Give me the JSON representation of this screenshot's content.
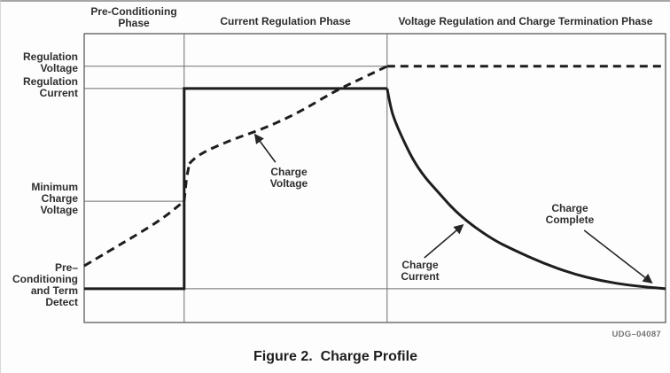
{
  "figure": {
    "caption": "Figure 2.  Charge Profile",
    "drawing_number": "UDG–04087"
  },
  "labels": {
    "phase1": "Pre-Conditioning\nPhase",
    "phase2": "Current Regulation Phase",
    "phase3": "Voltage Regulation and Charge Termination Phase",
    "regulation_voltage": "Regulation\nVoltage",
    "regulation_current": "Regulation\nCurrent",
    "minimum_charge_voltage": "Minimum\nCharge\nVoltage",
    "precondition_term_detect": "Pre–\nConditioning\nand Term\nDetect",
    "charge_voltage": "Charge\nVoltage",
    "charge_current": "Charge\nCurrent",
    "charge_complete": "Charge\nComplete"
  },
  "chart_data": {
    "type": "line",
    "title": "Figure 2.  Charge Profile",
    "xlabel": "",
    "ylabel": "",
    "units": "normalized 0–1 fractions (chart shows no numeric scales)",
    "grid": "reference levels and phase boundaries only",
    "phases": [
      {
        "label": "Pre-Conditioning Phase",
        "x_start": 0,
        "x_end": 0.172
      },
      {
        "label": "Current Regulation Phase",
        "x_start": 0.172,
        "x_end": 0.521
      },
      {
        "label": "Voltage Regulation and Charge Termination Phase",
        "x_start": 0.521,
        "x_end": 1
      }
    ],
    "y_levels": [
      {
        "label": "Regulation Voltage",
        "y": 0.887,
        "span": [
          0,
          0.521
        ]
      },
      {
        "label": "Regulation Current",
        "y": 0.81,
        "span": [
          0,
          0.172
        ]
      },
      {
        "label": "Minimum Charge Voltage",
        "y": 0.42,
        "span": [
          0,
          0.172
        ]
      },
      {
        "label": "Pre-Conditioning and Term Detect",
        "y": 0.117,
        "span": [
          0.172,
          1
        ]
      }
    ],
    "series": [
      {
        "name": "Charge Voltage",
        "style": "dashed",
        "segments": [
          {
            "smooth": true,
            "points": [
              [
                0,
                0.196
              ],
              [
                0.045,
                0.25
              ],
              [
                0.09,
                0.303
              ],
              [
                0.135,
                0.36
              ],
              [
                0.172,
                0.42
              ]
            ]
          },
          {
            "smooth": false,
            "points": [
              [
                0.172,
                0.42
              ],
              [
                0.176,
                0.5
              ],
              [
                0.181,
                0.55
              ]
            ]
          },
          {
            "smooth": true,
            "points": [
              [
                0.181,
                0.55
              ],
              [
                0.192,
                0.578
              ],
              [
                0.25,
                0.63
              ],
              [
                0.31,
                0.672
              ],
              [
                0.37,
                0.728
              ],
              [
                0.43,
                0.8
              ],
              [
                0.48,
                0.848
              ],
              [
                0.521,
                0.887
              ]
            ]
          },
          {
            "smooth": false,
            "points": [
              [
                0.521,
                0.887
              ],
              [
                1,
                0.887
              ]
            ]
          }
        ]
      },
      {
        "name": "Charge Current",
        "style": "solid",
        "segments": [
          {
            "smooth": false,
            "points": [
              [
                0,
                0.117
              ],
              [
                0.172,
                0.117
              ],
              [
                0.172,
                0.81
              ],
              [
                0.521,
                0.81
              ]
            ]
          },
          {
            "smooth": true,
            "points": [
              [
                0.521,
                0.81
              ],
              [
                0.527,
                0.745
              ],
              [
                0.534,
                0.7
              ],
              [
                0.546,
                0.644
              ],
              [
                0.565,
                0.565
              ],
              [
                0.585,
                0.505
              ],
              [
                0.605,
                0.46
              ],
              [
                0.645,
                0.37
              ],
              [
                0.7,
                0.29
              ],
              [
                0.74,
                0.25
              ],
              [
                0.79,
                0.205
              ],
              [
                0.84,
                0.169
              ],
              [
                0.89,
                0.144
              ],
              [
                0.94,
                0.128
              ],
              [
                1,
                0.117
              ]
            ]
          }
        ]
      }
    ],
    "annotations": [
      {
        "label": "Charge Voltage",
        "from": [
          0.329,
          0.555
        ],
        "to": [
          0.294,
          0.65
        ]
      },
      {
        "label": "Charge Current",
        "from": [
          0.585,
          0.224
        ],
        "to": [
          0.651,
          0.337
        ]
      },
      {
        "label": "Charge Complete",
        "from": [
          0.86,
          0.319
        ],
        "to": [
          0.976,
          0.138
        ]
      }
    ]
  }
}
